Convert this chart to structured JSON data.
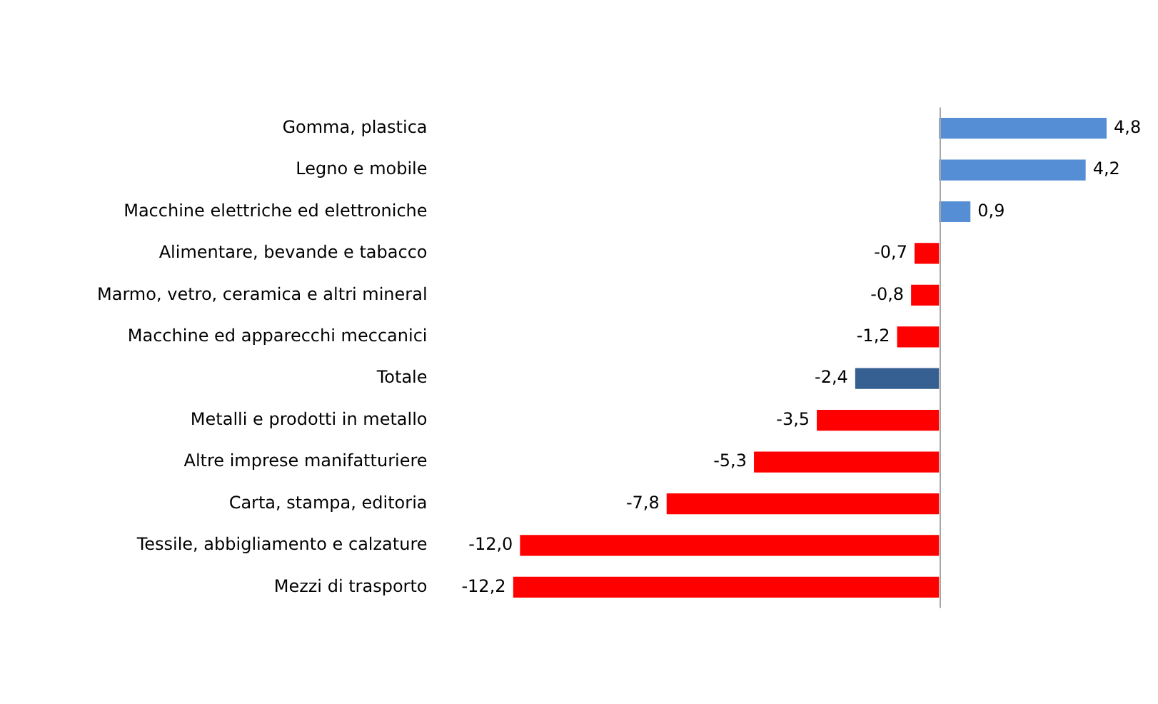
{
  "chart_data": {
    "type": "bar",
    "orientation": "horizontal",
    "categories": [
      "Gomma, plastica",
      "Legno e mobile",
      "Macchine elettriche ed elettroniche",
      "Alimentare, bevande e tabacco",
      "Marmo, vetro, ceramica e altri mineral",
      "Macchine ed apparecchi meccanici",
      "Totale",
      "Metalli e prodotti in metallo",
      "Altre imprese manifatturiere",
      "Carta, stampa, editoria",
      "Tessile, abbigliamento e calzature",
      "Mezzi di trasporto"
    ],
    "values": [
      4.8,
      4.2,
      0.9,
      -0.7,
      -0.8,
      -1.2,
      -2.4,
      -3.5,
      -5.3,
      -7.8,
      -12.0,
      -12.2
    ],
    "value_labels": [
      "4,8",
      "4,2",
      "0,9",
      "-0,7",
      "-0,8",
      "-1,2",
      "-2,4",
      "-3,5",
      "-5,3",
      "-7,8",
      "-12,0",
      "-12,2"
    ],
    "colors": [
      "#558ed5",
      "#558ed5",
      "#558ed5",
      "#ff0000",
      "#ff0000",
      "#ff0000",
      "#376092",
      "#ff0000",
      "#ff0000",
      "#ff0000",
      "#ff0000",
      "#ff0000"
    ],
    "grid": false,
    "legend": false
  }
}
